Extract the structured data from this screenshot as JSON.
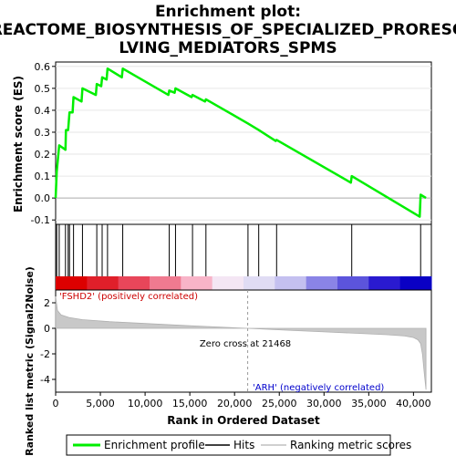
{
  "chart_data": {
    "type": "line",
    "title_lines": [
      "Enrichment plot:",
      "REACTOME_BIOSYNTHESIS_OF_SPECIALIZED_PRORESO",
      "LVING_MEDIATORS_SPMS"
    ],
    "top_panel": {
      "ylabel": "Enrichment score (ES)",
      "ylim": [
        -0.12,
        0.62
      ],
      "yticks": [
        "-0.1",
        "0.0",
        "0.1",
        "0.2",
        "0.3",
        "0.4",
        "0.5",
        "0.6"
      ],
      "ytick_values": [
        -0.1,
        0.0,
        0.1,
        0.2,
        0.3,
        0.4,
        0.5,
        0.6
      ],
      "series": [
        {
          "name": "Enrichment profile",
          "color": "#00ee00",
          "x": [
            0,
            120,
            400,
            1100,
            1150,
            1400,
            1550,
            1900,
            2000,
            2900,
            3000,
            4500,
            4600,
            5100,
            5200,
            5700,
            5800,
            7400,
            7500,
            12600,
            12700,
            13300,
            13400,
            15200,
            15300,
            16700,
            16800,
            21500,
            22700,
            24600,
            24700,
            33000,
            33100,
            40700,
            40800,
            41400
          ],
          "y": [
            0.0,
            0.12,
            0.24,
            0.22,
            0.31,
            0.31,
            0.39,
            0.39,
            0.46,
            0.44,
            0.5,
            0.47,
            0.52,
            0.51,
            0.55,
            0.54,
            0.59,
            0.55,
            0.59,
            0.47,
            0.49,
            0.48,
            0.5,
            0.46,
            0.47,
            0.44,
            0.45,
            0.34,
            0.31,
            0.26,
            0.265,
            0.07,
            0.1,
            -0.085,
            0.015,
            0.0
          ]
        }
      ]
    },
    "hits": [
      120,
      400,
      1100,
      1400,
      1550,
      2000,
      3000,
      4600,
      5200,
      5800,
      7500,
      12700,
      13400,
      15300,
      16800,
      21500,
      22700,
      24700,
      33100,
      40800
    ],
    "ranked_panel": {
      "ylabel": "Ranked list metric (Signal2Noise)",
      "ylim": [
        -5.0,
        3.0
      ],
      "yticks": [
        "-4",
        "-2",
        "0",
        "2"
      ],
      "ytick_values": [
        -4,
        -2,
        0,
        2
      ],
      "metric_profile": {
        "x": [
          0,
          200,
          600,
          1500,
          3000,
          6000,
          10000,
          15000,
          21468,
          26000,
          30000,
          34000,
          37000,
          39000,
          40000,
          40500,
          40800,
          41000,
          41200,
          41400
        ],
        "y": [
          2.5,
          1.4,
          1.05,
          0.85,
          0.68,
          0.52,
          0.38,
          0.2,
          0.0,
          -0.15,
          -0.28,
          -0.4,
          -0.5,
          -0.6,
          -0.72,
          -0.9,
          -1.2,
          -2.0,
          -3.5,
          -4.8
        ]
      },
      "zero_cross_label": "Zero cross at 21468",
      "zero_cross_value": 21468,
      "positive_label": "'FSHD2' (positively correlated)",
      "negative_label": "'ARH' (negatively correlated)"
    },
    "xlabel": "Rank in Ordered Dataset",
    "xlim": [
      0,
      42000
    ],
    "xticks": [
      "0",
      "5,000",
      "10,000",
      "15,000",
      "20,000",
      "25,000",
      "30,000",
      "35,000",
      "40,000"
    ],
    "xtick_values": [
      0,
      5000,
      10000,
      15000,
      20000,
      25000,
      30000,
      35000,
      40000
    ],
    "heatmap_colors": [
      "#dd0000",
      "#e01f2a",
      "#e8465a",
      "#f07a90",
      "#f8b4c8",
      "#f4e6f4",
      "#e0dcf4",
      "#c4c0f0",
      "#8a84e6",
      "#5c54dc",
      "#2a1ad0",
      "#0a00c4"
    ],
    "legend": {
      "items": [
        {
          "label": "Enrichment profile",
          "color": "#00ee00"
        },
        {
          "label": "Hits",
          "color": "#000000"
        },
        {
          "label": "Ranking metric scores",
          "color": "#c0c0c0"
        }
      ]
    }
  }
}
